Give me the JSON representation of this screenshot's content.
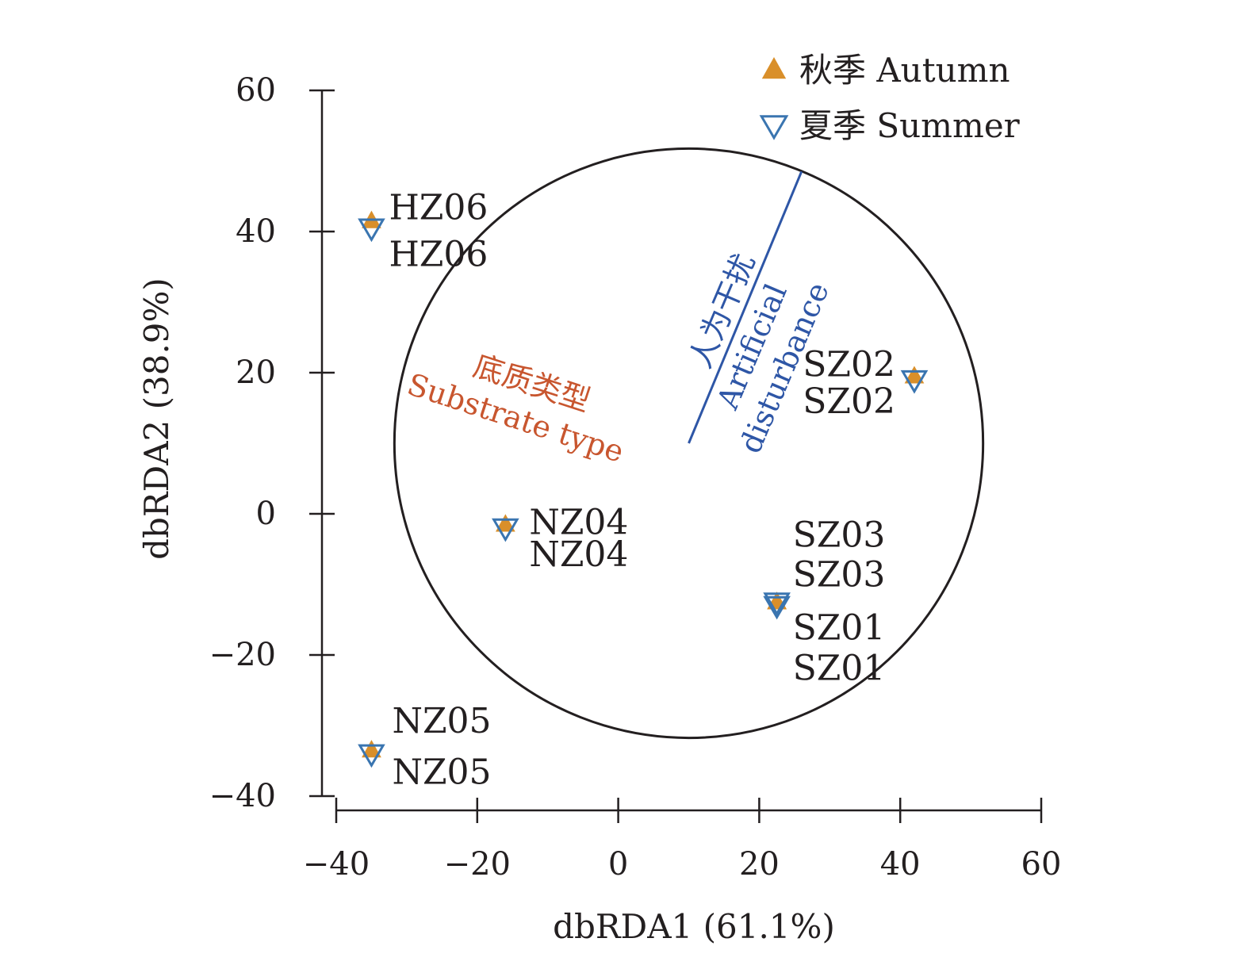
{
  "chart_data": {
    "type": "scatter",
    "title": "",
    "xlabel": "dbRDA1 (61.1%)",
    "ylabel": "dbRDA2 (38.9%)",
    "xlim": [
      -40,
      60
    ],
    "ylim": [
      -40,
      60
    ],
    "xticks": [
      -40,
      -20,
      0,
      20,
      40,
      60
    ],
    "yticks": [
      -40,
      -20,
      0,
      20,
      40,
      60
    ],
    "x_tick_labels": [
      "−40",
      "−20",
      "0",
      "20",
      "40",
      "60"
    ],
    "y_tick_labels": [
      "−40",
      "−20",
      "0",
      "20",
      "40",
      "60"
    ],
    "grid": false,
    "legend_position": "top-right",
    "series": [
      {
        "name": "秋季 Autumn",
        "marker": "triangle-up-filled",
        "color": "#d98f2a",
        "points": [
          {
            "label": "HZ06",
            "x": -35,
            "y": 41.5
          },
          {
            "label": "NZ04",
            "x": -16,
            "y": -1.5
          },
          {
            "label": "SZ02",
            "x": 42,
            "y": 19.5
          },
          {
            "label": "SZ03",
            "x": 22.5,
            "y": -12.5
          },
          {
            "label": "SZ01",
            "x": 22.5,
            "y": -12.5
          },
          {
            "label": "NZ05",
            "x": -35,
            "y": -33.5
          }
        ]
      },
      {
        "name": "夏季 Summer",
        "marker": "triangle-down-open",
        "color": "#3a75b0",
        "points": [
          {
            "label": "HZ06",
            "x": -35,
            "y": 40.5
          },
          {
            "label": "NZ04",
            "x": -16,
            "y": -2
          },
          {
            "label": "SZ02",
            "x": 42,
            "y": 19
          },
          {
            "label": "SZ03",
            "x": 22.5,
            "y": -12.5
          },
          {
            "label": "SZ01",
            "x": 22.5,
            "y": -13
          },
          {
            "label": "NZ05",
            "x": -35,
            "y": -34
          }
        ]
      }
    ],
    "circle": {
      "center": [
        10,
        10
      ],
      "radius": 41.75
    },
    "vectors": [
      {
        "name": "Substrate type",
        "label_cn": "底质类型",
        "label_en": "Substrate type",
        "color": "#c8562f",
        "from": [
          10,
          10
        ],
        "to": [
          10,
          10
        ]
      },
      {
        "name": "Artificial disturbance",
        "label_cn": "人为干扰",
        "label_en_line1": "Artificial",
        "label_en_line2": "disturbance",
        "color": "#2e56a6",
        "from": [
          10,
          10
        ],
        "to": [
          26,
          48.5
        ]
      }
    ]
  }
}
